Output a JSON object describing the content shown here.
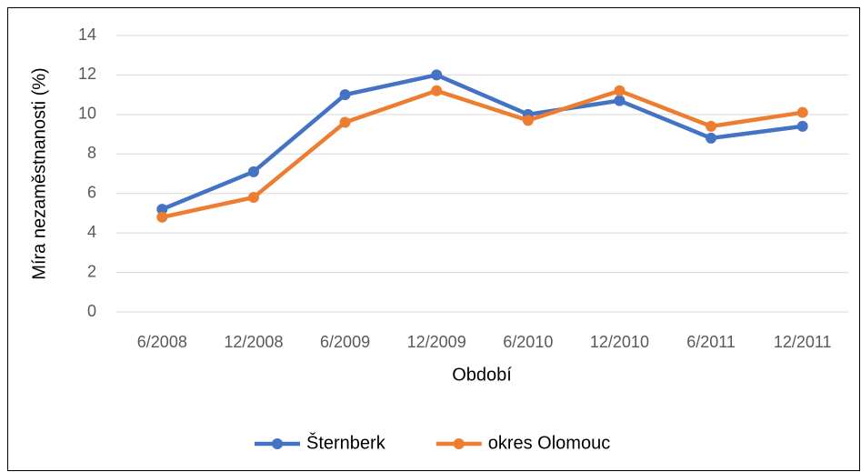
{
  "chart_data": {
    "type": "line",
    "x_label": "Období",
    "y_label": "Míra nezaměstnanosti (%)",
    "categories": [
      "6/2008",
      "12/2008",
      "6/2009",
      "12/2009",
      "6/2010",
      "12/2010",
      "6/2011",
      "12/2011"
    ],
    "series": [
      {
        "name": "Šternberk",
        "color": "#4472c4",
        "values": [
          5.2,
          7.1,
          11.0,
          12.0,
          10.0,
          10.7,
          8.8,
          9.4
        ]
      },
      {
        "name": "okres Olomouc",
        "color": "#ed7d31",
        "values": [
          4.8,
          5.8,
          9.6,
          11.2,
          9.7,
          11.2,
          9.4,
          10.1
        ]
      }
    ],
    "ylim": [
      0,
      14
    ],
    "yticks": [
      0,
      2,
      4,
      6,
      8,
      10,
      12,
      14
    ],
    "grid": true,
    "legend": "bottom"
  }
}
